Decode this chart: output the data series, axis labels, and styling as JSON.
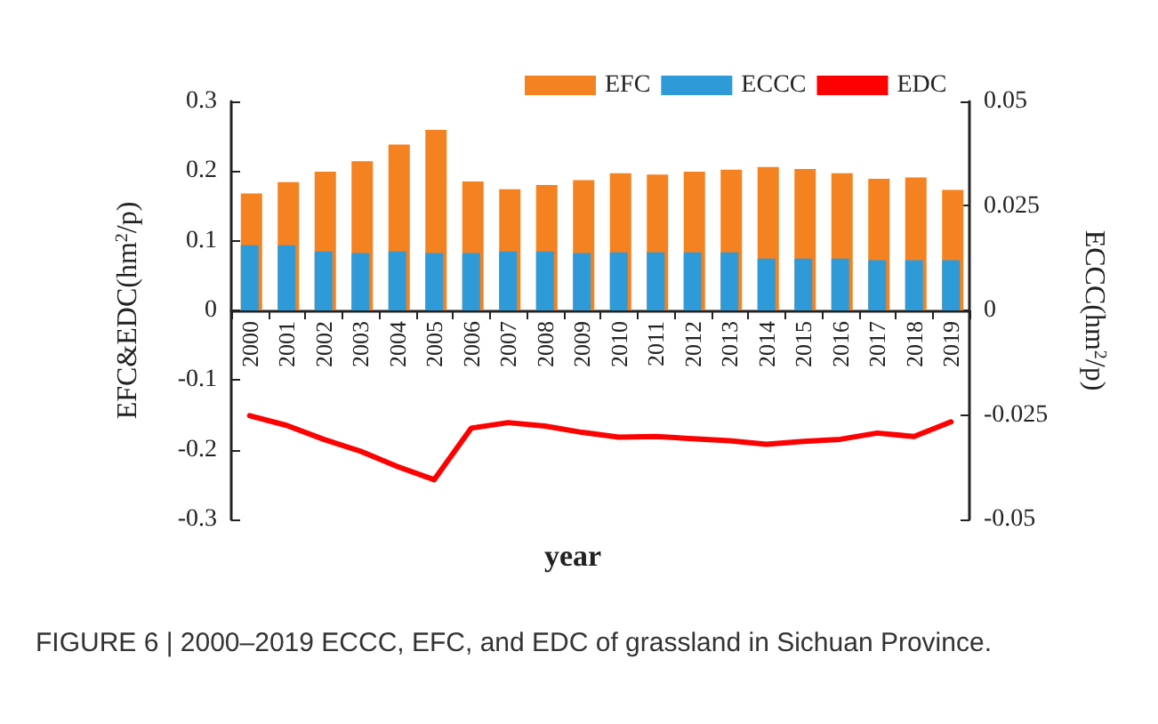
{
  "chart_data": {
    "type": "bar",
    "categories": [
      "2000",
      "2001",
      "2002",
      "2003",
      "2004",
      "2005",
      "2006",
      "2007",
      "2008",
      "2009",
      "2010",
      "2011",
      "2012",
      "2013",
      "2014",
      "2015",
      "2016",
      "2017",
      "2018",
      "2019"
    ],
    "series": [
      {
        "name": "EFC",
        "color": "#f58220",
        "values": [
          0.168,
          0.184,
          0.199,
          0.214,
          0.238,
          0.259,
          0.185,
          0.174,
          0.18,
          0.187,
          0.197,
          0.195,
          0.199,
          0.202,
          0.206,
          0.203,
          0.197,
          0.189,
          0.191,
          0.173
        ]
      },
      {
        "name": "ECCC",
        "axis": "y2",
        "color": "#2e9bd8",
        "values": [
          0.0156,
          0.0156,
          0.0141,
          0.0137,
          0.0141,
          0.0137,
          0.0137,
          0.0141,
          0.0141,
          0.0137,
          0.0139,
          0.0139,
          0.0139,
          0.0139,
          0.0124,
          0.0124,
          0.0124,
          0.012,
          0.012,
          0.012
        ]
      },
      {
        "name": "EDC",
        "type": "line",
        "color": "#ff0000",
        "values": [
          -0.151,
          -0.165,
          -0.185,
          -0.202,
          -0.224,
          -0.243,
          -0.169,
          -0.161,
          -0.166,
          -0.175,
          -0.182,
          -0.181,
          -0.184,
          -0.187,
          -0.192,
          -0.188,
          -0.185,
          -0.176,
          -0.181,
          -0.16
        ]
      }
    ],
    "xlabel": "year",
    "ylabel": "EFC&EDC(hm$^{2}$/p)",
    "y2label": "ECCC(hm$^{2}$/p)",
    "ylim": [
      -0.3,
      0.3
    ],
    "yticks": [
      -0.3,
      -0.2,
      -0.1,
      0,
      0.1,
      0.2,
      0.3
    ],
    "y2lim": [
      -0.05,
      0.05
    ],
    "y2ticks": [
      -0.05,
      -0.025,
      0,
      0.025,
      0.05
    ],
    "grid": false,
    "legend": "top",
    "marker": "none",
    "line_style": "solid",
    "annotations": [
      "FIGURE 6 | 2000–2019 ECCC, EFC, and EDC of grassland in Sichuan Province."
    ]
  }
}
